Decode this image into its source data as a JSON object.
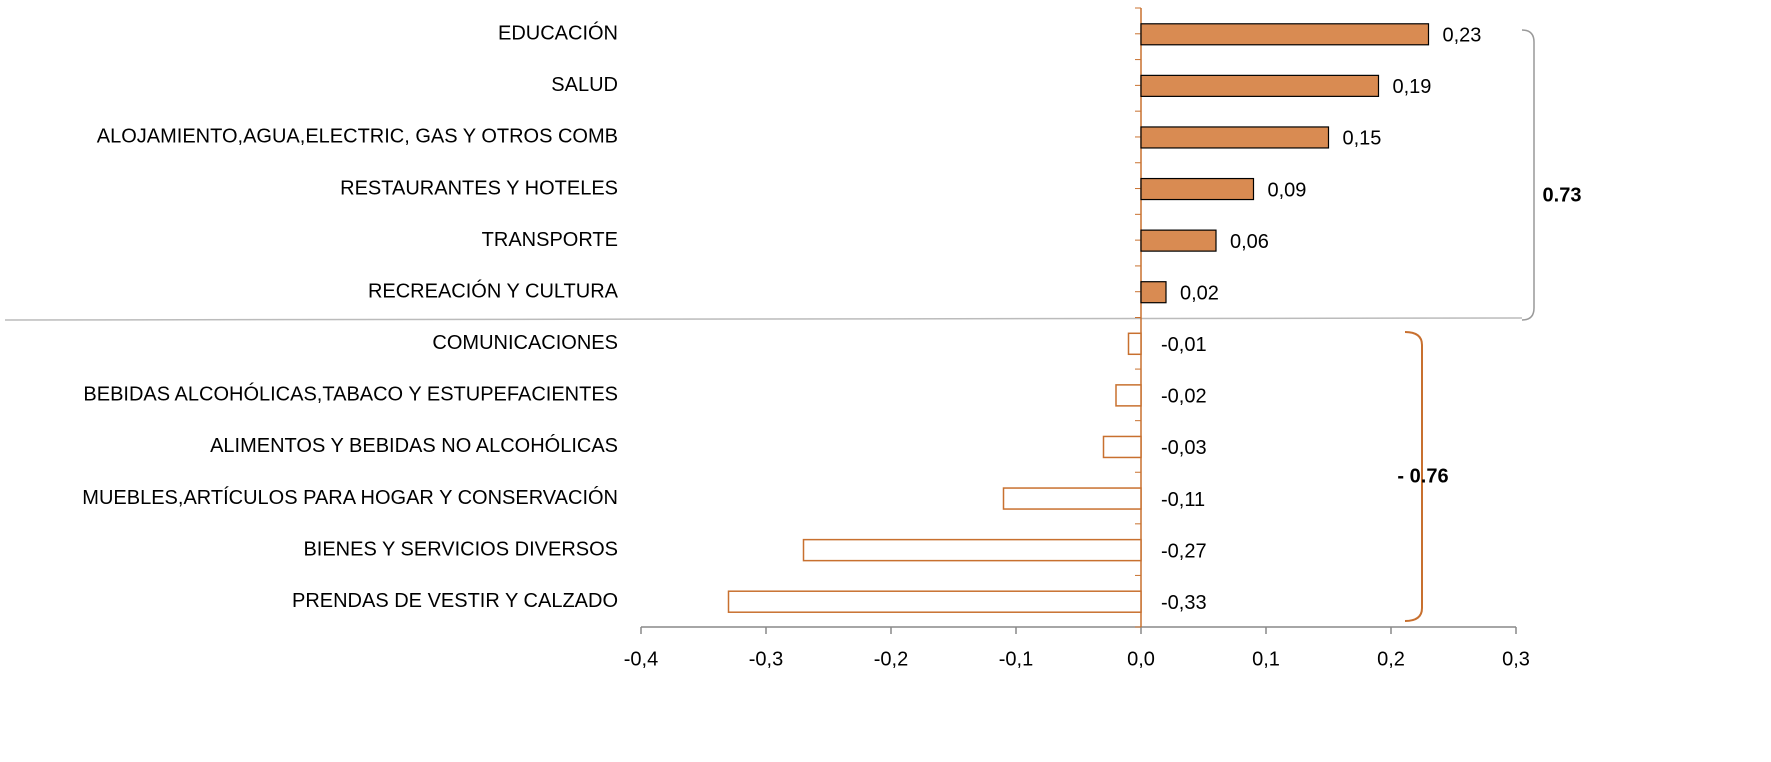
{
  "chart_data": {
    "type": "hbar",
    "categories": [
      "EDUCACIÓN",
      "SALUD",
      "ALOJAMIENTO,AGUA,ELECTRIC, GAS Y OTROS COMB",
      "RESTAURANTES Y HOTELES",
      "TRANSPORTE",
      "RECREACIÓN Y CULTURA",
      "COMUNICACIONES",
      "BEBIDAS ALCOHÓLICAS,TABACO Y ESTUPEFACIENTES",
      "ALIMENTOS Y BEBIDAS NO ALCOHÓLICAS",
      "MUEBLES,ARTÍCULOS PARA HOGAR Y CONSERVACIÓN",
      "BIENES Y SERVICIOS DIVERSOS",
      "PRENDAS DE VESTIR Y CALZADO"
    ],
    "values": [
      0.23,
      0.19,
      0.15,
      0.09,
      0.06,
      0.02,
      -0.01,
      -0.02,
      -0.03,
      -0.11,
      -0.27,
      -0.33
    ],
    "value_labels": [
      "0,23",
      "0,19",
      "0,15",
      "0,09",
      "0,06",
      "0,02",
      "-0,01",
      "-0,02",
      "-0,03",
      "-0,11",
      "-0,27",
      "-0,33"
    ],
    "color": "#d98b52",
    "negative_color": "#c8702f",
    "xlim": [
      -0.4,
      0.3
    ],
    "xticks": [
      {
        "value": -0.4,
        "label": "-0,4"
      },
      {
        "value": -0.3,
        "label": "-0,3"
      },
      {
        "value": -0.2,
        "label": "-0,2"
      },
      {
        "value": -0.1,
        "label": "-0,1"
      },
      {
        "value": 0,
        "label": "0,0"
      },
      {
        "value": 0.1,
        "label": "0,1"
      },
      {
        "value": 0.2,
        "label": "0,2"
      },
      {
        "value": 0.3,
        "label": "0,3"
      }
    ],
    "annotations": [
      {
        "text": "0.73",
        "color": "#000000"
      },
      {
        "text": "- 0.76",
        "color": "#c0692a"
      }
    ]
  }
}
